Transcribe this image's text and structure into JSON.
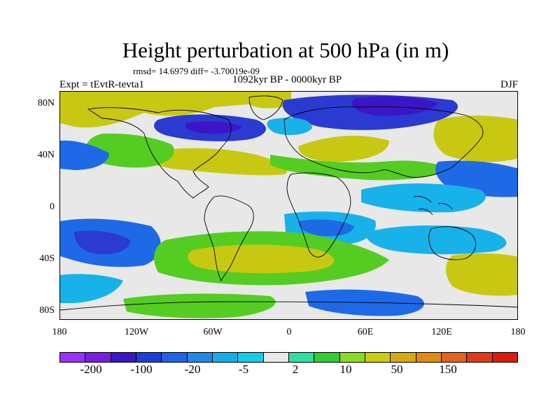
{
  "title": "Height perturbation at 500 hPa (in m)",
  "stats": "rmsd= 14.6979 diff= -3.70019e-09",
  "experiment": "Expt = tEvtR-tevta1",
  "period": "1092kyr BP - 0000kyr BP",
  "season": "DJF",
  "map": {
    "lat_labels": [
      "80N",
      "40N",
      "0",
      "40S",
      "80S"
    ],
    "lon_labels": [
      "180",
      "120W",
      "60W",
      "0",
      "60E",
      "120E",
      "180"
    ]
  },
  "colorbar": {
    "colors": [
      "#9b30ff",
      "#7a1fe0",
      "#3a16c8",
      "#1a40d8",
      "#1f63e8",
      "#1e8ae6",
      "#16aee8",
      "#13cde6",
      "#e8e8e8",
      "#2fe0a0",
      "#33cc33",
      "#88dd22",
      "#cccc11",
      "#d8aa11",
      "#e08a13",
      "#e0641c",
      "#e03a18",
      "#e01a0a"
    ],
    "labels": [
      "-200",
      "-100",
      "-20",
      "-5",
      "2",
      "10",
      "50",
      "150"
    ]
  },
  "field_palette": {
    "deep_negative": "#2b3ad0",
    "negative": "#1e6ae6",
    "light_negative": "#18b2ea",
    "neutral": "#e8e8e8",
    "weak_positive": "#2fd88a",
    "positive": "#55cc22",
    "strong_positive": "#c8c813",
    "very_strong_positive": "#d8a814"
  }
}
